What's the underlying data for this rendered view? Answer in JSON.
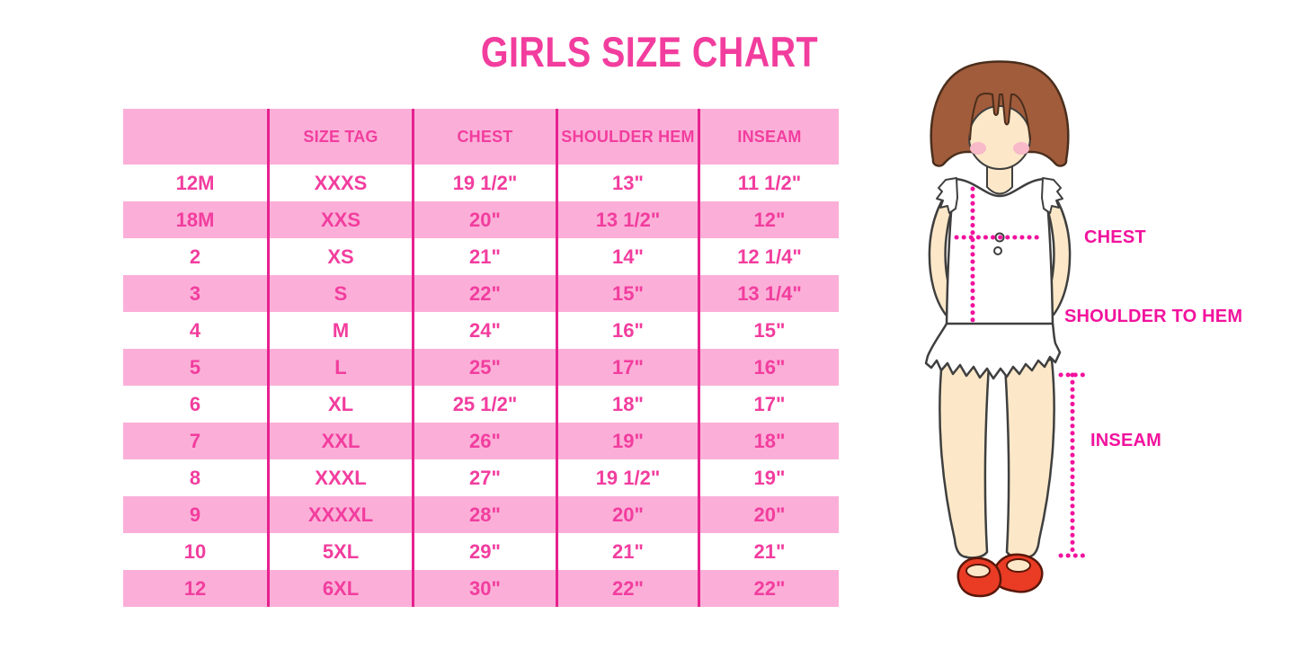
{
  "title": "GIRLS SIZE CHART",
  "table": {
    "columns": [
      "",
      "SIZE TAG",
      "CHEST",
      "SHOULDER HEM",
      "INSEAM"
    ],
    "rows": [
      [
        "12M",
        "XXXS",
        "19 1/2\"",
        "13\"",
        "11 1/2\""
      ],
      [
        "18M",
        "XXS",
        "20\"",
        "13 1/2\"",
        "12\""
      ],
      [
        "2",
        "XS",
        "21\"",
        "14\"",
        "12 1/4\""
      ],
      [
        "3",
        "S",
        "22\"",
        "15\"",
        "13 1/4\""
      ],
      [
        "4",
        "M",
        "24\"",
        "16\"",
        "15\""
      ],
      [
        "5",
        "L",
        "25\"",
        "17\"",
        "16\""
      ],
      [
        "6",
        "XL",
        "25 1/2\"",
        "18\"",
        "17\""
      ],
      [
        "7",
        "XXL",
        "26\"",
        "19\"",
        "18\""
      ],
      [
        "8",
        "XXXL",
        "27\"",
        "19 1/2\"",
        "19\""
      ],
      [
        "9",
        "XXXXL",
        "28\"",
        "20\"",
        "20\""
      ],
      [
        "10",
        "5XL",
        "29\"",
        "21\"",
        "21\""
      ],
      [
        "12",
        "6XL",
        "30\"",
        "22\"",
        "22\""
      ]
    ]
  },
  "figure_labels": {
    "chest": "CHEST",
    "shoulder_to_hem": "SHOULDER TO HEM",
    "inseam": "INSEAM"
  },
  "colors": {
    "accent_pink": "#F23D9E",
    "light_pink": "#FBAFD8",
    "column_line_magenta": "#E7218F",
    "label_pink": "#F2129D",
    "hair_brown": "#A15C3C",
    "skin": "#FCE8C8",
    "shoe_red": "#EA3B25"
  }
}
